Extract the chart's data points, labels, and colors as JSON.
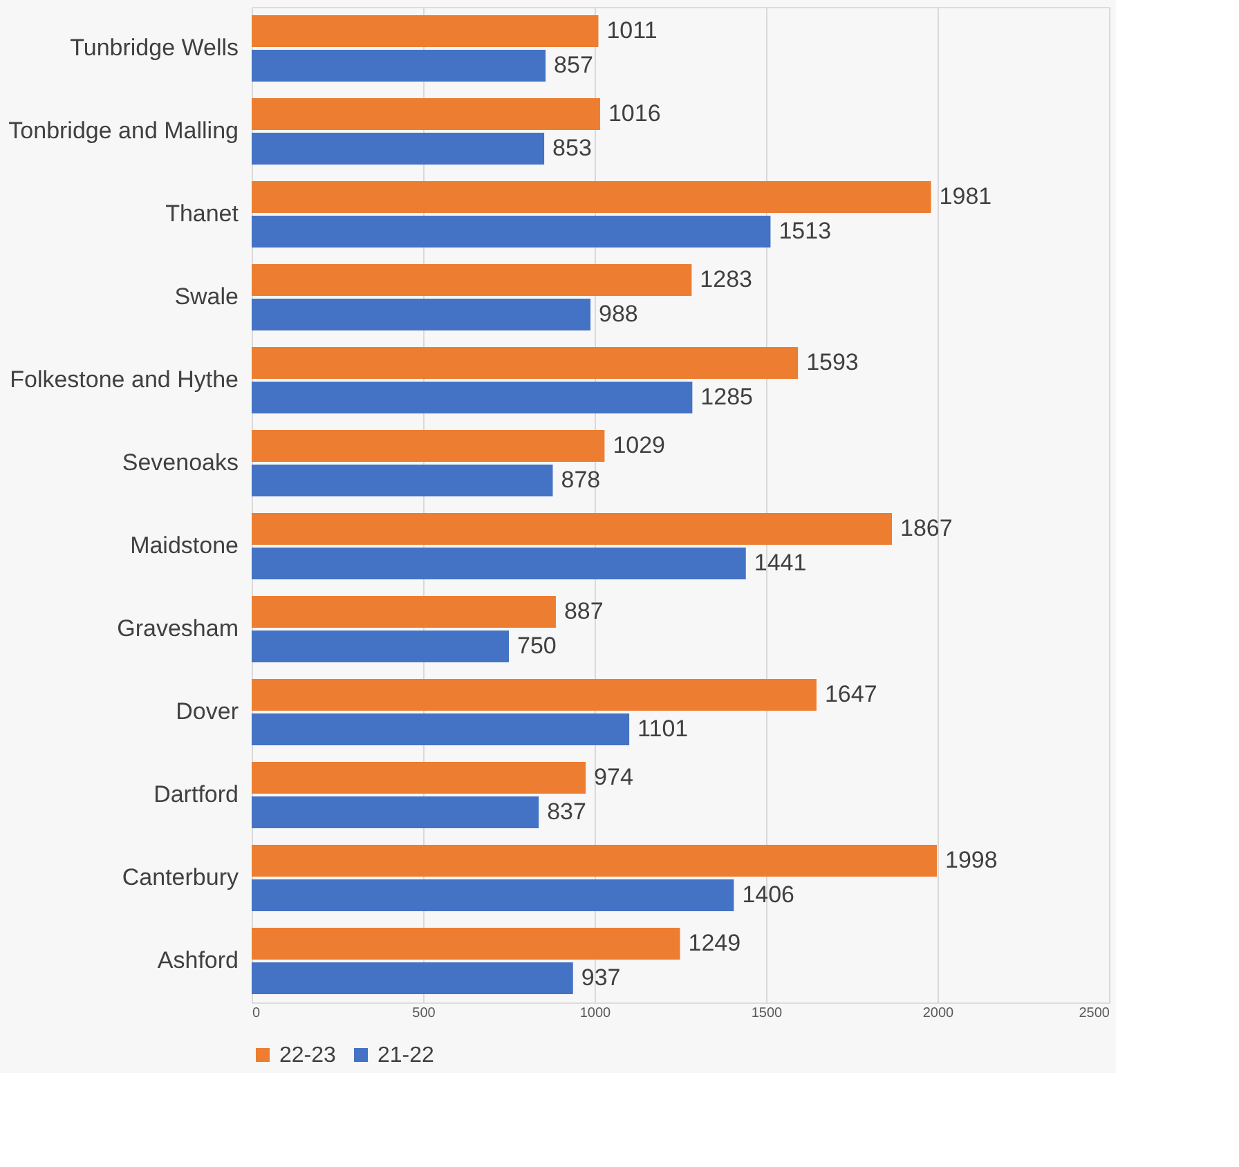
{
  "chart_data": {
    "type": "bar",
    "orientation": "horizontal",
    "categories": [
      "Tunbridge Wells",
      "Tonbridge and Malling",
      "Thanet",
      "Swale",
      "Folkestone and Hythe",
      "Sevenoaks",
      "Maidstone",
      "Gravesham",
      "Dover",
      "Dartford",
      "Canterbury",
      "Ashford"
    ],
    "series": [
      {
        "name": "22-23",
        "color": "#ed7d31",
        "values": [
          1011,
          1016,
          1981,
          1283,
          1593,
          1029,
          1867,
          887,
          1647,
          974,
          1998,
          1249
        ]
      },
      {
        "name": "21-22",
        "color": "#4472c4",
        "values": [
          857,
          853,
          1513,
          988,
          1285,
          878,
          1441,
          750,
          1101,
          837,
          1406,
          937
        ]
      }
    ],
    "xlim": [
      0,
      2500
    ],
    "xticks": [
      0,
      500,
      1000,
      1500,
      2000,
      2500
    ],
    "grid": "x",
    "legend": "bottom",
    "data_labels": true
  }
}
